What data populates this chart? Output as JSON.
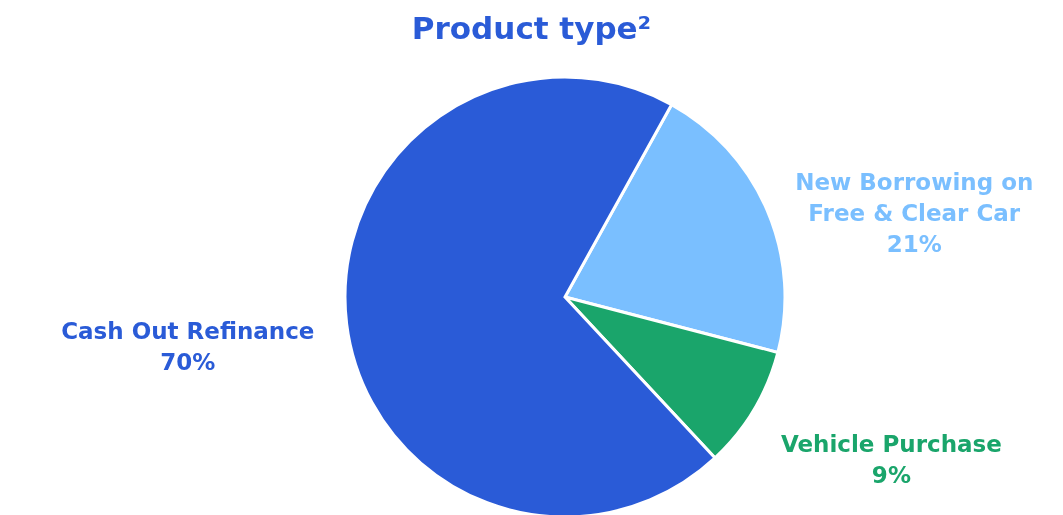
{
  "chart_data": {
    "type": "pie",
    "title": "Product type²",
    "categories": [
      "New Borrowing on\nFree & Clear Car",
      "Vehicle Purchase",
      "Cash Out Refinance"
    ],
    "values": [
      21,
      9,
      70
    ],
    "value_labels": [
      "21%",
      "9%",
      "70%"
    ],
    "colors": [
      "#7abfff",
      "#1aa56b",
      "#2a5bd7"
    ],
    "legend": false
  }
}
